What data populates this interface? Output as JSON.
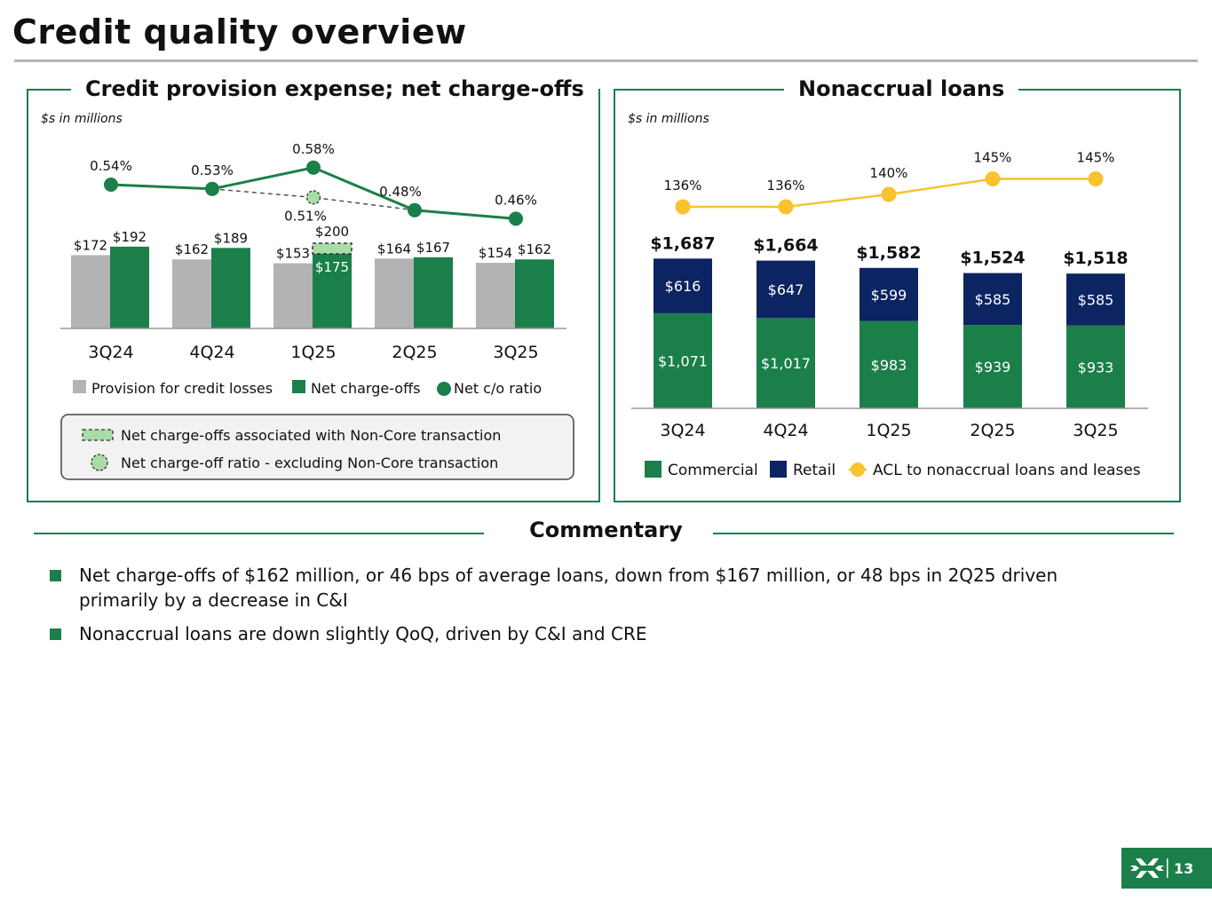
{
  "page": {
    "title": "Credit quality overview",
    "page_number": "13"
  },
  "colors": {
    "brand_green": "#1b7f4a",
    "gray": "#b3b3b3",
    "navy": "#0c2461",
    "gold": "#f7c32e",
    "light_green": "#a8dca8"
  },
  "left_panel": {
    "title": "Credit provision expense; net charge-offs",
    "unit": "$s in millions",
    "legend": {
      "provision": "Provision for credit losses",
      "nco": "Net charge-offs",
      "ratio": "Net c/o ratio"
    },
    "callout": {
      "noncore_nco": "Net charge-offs associated with Non-Core transaction",
      "ratio_excl": "Net charge-off ratio - excluding Non-Core transaction"
    }
  },
  "right_panel": {
    "title": "Nonaccrual loans",
    "unit": "$s in millions",
    "legend": {
      "commercial": "Commercial",
      "retail": "Retail",
      "acl": "ACL to nonaccrual loans and leases"
    }
  },
  "commentary": {
    "title": "Commentary",
    "bullets": [
      "Net charge-offs of $162 million, or 46 bps of average loans, down from $167 million, or 48 bps in 2Q25 driven primarily by a decrease in C&I",
      "Nonaccrual loans are down slightly QoQ, driven by C&I and CRE"
    ]
  },
  "chart_data": [
    {
      "type": "bar",
      "title": "Credit provision expense; net charge-offs",
      "categories": [
        "3Q24",
        "4Q24",
        "1Q25",
        "2Q25",
        "3Q25"
      ],
      "series": [
        {
          "name": "Provision for credit losses",
          "values": [
            172,
            162,
            153,
            164,
            154
          ],
          "labels": [
            "$172",
            "$162",
            "$153",
            "$164",
            "$154"
          ]
        },
        {
          "name": "Net charge-offs",
          "values": [
            192,
            189,
            175,
            167,
            162
          ],
          "labels": [
            "$192",
            "$189",
            "$175",
            "$167",
            "$162"
          ]
        },
        {
          "name": "Net charge-offs associated with Non-Core transaction",
          "values": [
            0,
            0,
            25,
            0,
            0
          ],
          "total_label": "$200"
        }
      ],
      "line": {
        "name": "Net c/o ratio",
        "values": [
          0.54,
          0.53,
          0.58,
          0.48,
          0.46
        ],
        "labels": [
          "0.54%",
          "0.53%",
          "0.58%",
          "0.48%",
          "0.46%"
        ]
      },
      "line_excl": {
        "name": "Net charge-off ratio - excluding Non-Core transaction",
        "values": [
          0.53,
          0.51,
          0.48
        ],
        "labels": [
          "",
          "0.51%",
          ""
        ]
      },
      "ylabel": "$s in millions"
    },
    {
      "type": "bar",
      "stacked": true,
      "title": "Nonaccrual loans",
      "categories": [
        "3Q24",
        "4Q24",
        "1Q25",
        "2Q25",
        "3Q25"
      ],
      "series": [
        {
          "name": "Commercial",
          "values": [
            1071,
            1017,
            983,
            939,
            933
          ],
          "labels": [
            "$1,071",
            "$1,017",
            "$983",
            "$939",
            "$933"
          ]
        },
        {
          "name": "Retail",
          "values": [
            616,
            647,
            599,
            585,
            585
          ],
          "labels": [
            "$616",
            "$647",
            "$599",
            "$585",
            "$585"
          ]
        }
      ],
      "totals": [
        1687,
        1664,
        1582,
        1524,
        1518
      ],
      "total_labels": [
        "$1,687",
        "$1,664",
        "$1,582",
        "$1,524",
        "$1,518"
      ],
      "line": {
        "name": "ACL to nonaccrual loans and leases",
        "values": [
          136,
          136,
          140,
          145,
          145
        ],
        "labels": [
          "136%",
          "136%",
          "140%",
          "145%",
          "145%"
        ]
      },
      "ylabel": "$s in millions"
    }
  ]
}
